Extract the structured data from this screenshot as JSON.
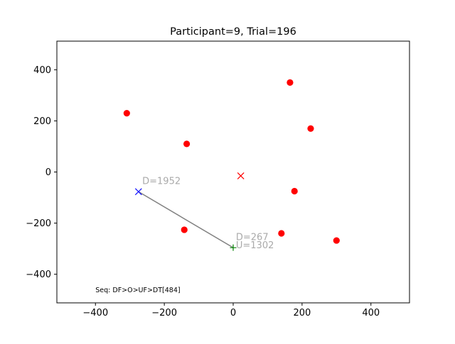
{
  "chart_data": {
    "type": "scatter",
    "title": "Participant=9, Trial=196",
    "xlabel": "",
    "ylabel": "",
    "xlim": [
      -512,
      512
    ],
    "ylim": [
      -512,
      512
    ],
    "xticks": [
      -400,
      -200,
      0,
      200,
      400
    ],
    "yticks": [
      -400,
      -200,
      0,
      200,
      400
    ],
    "xtick_labels": [
      "−400",
      "−200",
      "0",
      "200",
      "400"
    ],
    "ytick_labels": [
      "−400",
      "−200",
      "0",
      "200",
      "400"
    ],
    "grid": false,
    "targets": {
      "marker": "circle",
      "color": "#ff0000",
      "points": [
        {
          "x": -309,
          "y": 230
        },
        {
          "x": 165,
          "y": 350
        },
        {
          "x": 225,
          "y": 170
        },
        {
          "x": -135,
          "y": 110
        },
        {
          "x": 178,
          "y": -75
        },
        {
          "x": -142,
          "y": -226
        },
        {
          "x": 140,
          "y": -240
        },
        {
          "x": 300,
          "y": -268
        }
      ]
    },
    "center_marker": {
      "marker": "x",
      "color": "#ff0000",
      "x": 22,
      "y": -15
    },
    "path": {
      "color": "#808080",
      "start": {
        "x": -275,
        "y": -77,
        "marker": "x",
        "color": "#0000ff"
      },
      "end": {
        "x": 0,
        "y": -296,
        "marker": "+",
        "color": "#008000"
      }
    },
    "annotations": [
      {
        "text": "D=1952",
        "x": -264,
        "y": -47,
        "color": "#aaaaaa"
      },
      {
        "text": "D=267",
        "x": 8,
        "y": -266,
        "color": "#aaaaaa"
      },
      {
        "text": "U=1302",
        "x": 8,
        "y": -299,
        "color": "#aaaaaa"
      }
    ],
    "footer": {
      "text": "Seq: DF>O>UF>DT[484]",
      "x": -400,
      "y": -470
    }
  }
}
